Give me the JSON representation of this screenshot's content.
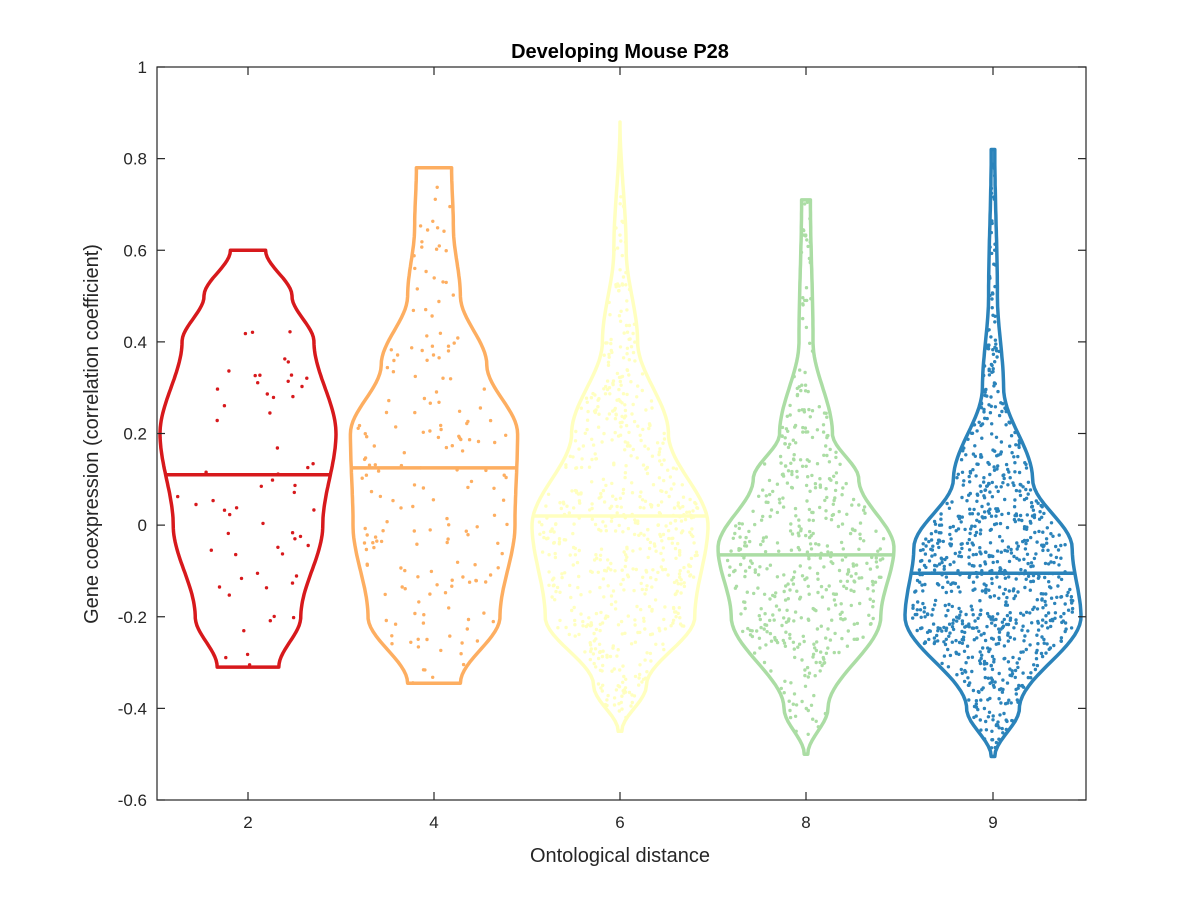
{
  "chart_data": {
    "type": "violin",
    "title": "Developing Mouse P28",
    "xlabel": "Ontological distance",
    "ylabel": "Gene coexpression (correlation coefficient)",
    "ylim": [
      -0.6,
      1
    ],
    "yticks": [
      -0.6,
      -0.4,
      -0.2,
      0,
      0.2,
      0.4,
      0.6,
      0.8,
      1
    ],
    "ytick_labels": [
      "-0.6",
      "-0.4",
      "-0.2",
      "0",
      "0.2",
      "0.4",
      "0.6",
      "0.8",
      "1"
    ],
    "categories": [
      "2",
      "4",
      "6",
      "8",
      "9"
    ],
    "grid": false,
    "box": true,
    "series": [
      {
        "category": "2",
        "color": "#d7191c",
        "median": 0.11,
        "min": -0.31,
        "max": 0.6,
        "n_points": 60,
        "density": [
          [
            -0.31,
            0.35
          ],
          [
            -0.2,
            0.6
          ],
          [
            0.0,
            0.85
          ],
          [
            0.2,
            1.0
          ],
          [
            0.4,
            0.75
          ],
          [
            0.5,
            0.5
          ],
          [
            0.6,
            0.2
          ]
        ]
      },
      {
        "category": "4",
        "color": "#fdae61",
        "median": 0.125,
        "min": -0.345,
        "max": 0.78,
        "n_points": 180,
        "density": [
          [
            -0.345,
            0.3
          ],
          [
            -0.2,
            0.75
          ],
          [
            0.0,
            0.92
          ],
          [
            0.2,
            0.95
          ],
          [
            0.35,
            0.6
          ],
          [
            0.5,
            0.3
          ],
          [
            0.65,
            0.22
          ],
          [
            0.78,
            0.2
          ]
        ]
      },
      {
        "category": "6",
        "color": "#ffffbf",
        "median": 0.02,
        "min": -0.45,
        "max": 0.88,
        "n_points": 650,
        "density": [
          [
            -0.45,
            0.02
          ],
          [
            -0.35,
            0.3
          ],
          [
            -0.2,
            0.85
          ],
          [
            0.0,
            1.0
          ],
          [
            0.2,
            0.55
          ],
          [
            0.4,
            0.2
          ],
          [
            0.6,
            0.07
          ],
          [
            0.88,
            0.0
          ]
        ]
      },
      {
        "category": "8",
        "color": "#abdda4",
        "median": -0.065,
        "min": -0.5,
        "max": 0.71,
        "n_points": 500,
        "density": [
          [
            -0.5,
            0.02
          ],
          [
            -0.4,
            0.25
          ],
          [
            -0.2,
            0.85
          ],
          [
            -0.05,
            1.0
          ],
          [
            0.1,
            0.6
          ],
          [
            0.2,
            0.3
          ],
          [
            0.4,
            0.08
          ],
          [
            0.71,
            0.05
          ]
        ]
      },
      {
        "category": "9",
        "color": "#2b83ba",
        "median": -0.105,
        "min": -0.505,
        "max": 0.82,
        "n_points": 900,
        "density": [
          [
            -0.505,
            0.02
          ],
          [
            -0.4,
            0.3
          ],
          [
            -0.2,
            1.0
          ],
          [
            -0.05,
            0.9
          ],
          [
            0.1,
            0.45
          ],
          [
            0.3,
            0.12
          ],
          [
            0.5,
            0.05
          ],
          [
            0.82,
            0.02
          ]
        ]
      }
    ]
  }
}
